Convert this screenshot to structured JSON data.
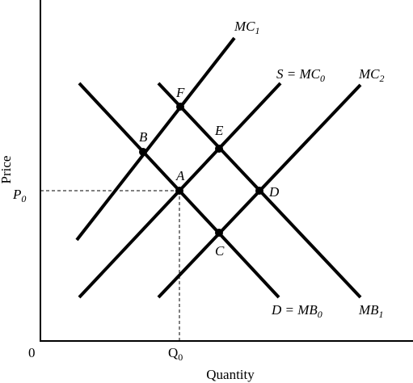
{
  "axes": {
    "y_label": "Price",
    "x_label": "Quantity",
    "origin": "0",
    "price_mark": {
      "main": "P",
      "sub": "0"
    },
    "quantity_mark": {
      "main": "Q",
      "sub": "0"
    }
  },
  "curves": [
    {
      "main": "MC",
      "sub": "1"
    },
    {
      "main": "S = MC",
      "sub": "0"
    },
    {
      "main": "MC",
      "sub": "2"
    },
    {
      "main": "D = MB",
      "sub": "0"
    },
    {
      "main": "MB",
      "sub": "1"
    }
  ],
  "points": [
    "F",
    "B",
    "E",
    "A",
    "D",
    "C"
  ]
}
